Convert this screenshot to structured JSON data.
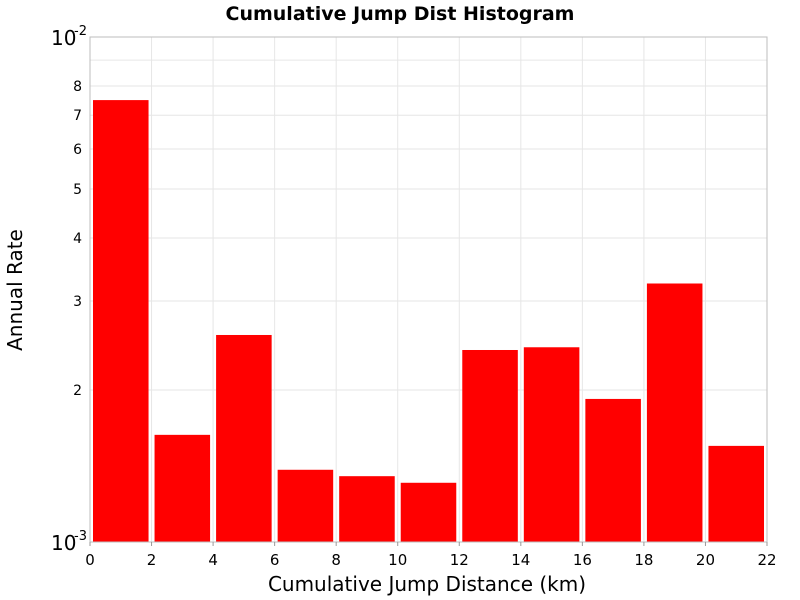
{
  "chart_data": {
    "type": "bar",
    "title": "Cumulative Jump Dist Histogram",
    "xlabel": "Cumulative Jump Distance (km)",
    "ylabel": "Annual Rate",
    "xlim": [
      0,
      22
    ],
    "ylim": [
      0.001,
      0.01
    ],
    "y_scale": "log",
    "grid": true,
    "bar_color": "#ff0000",
    "bin_width": 2,
    "x_ticks": [
      "0",
      "2",
      "4",
      "6",
      "8",
      "10",
      "12",
      "14",
      "16",
      "18",
      "20",
      "22"
    ],
    "y_decade_ticks": [
      {
        "value": 0.01,
        "base": "10",
        "exp": "-2"
      },
      {
        "value": 0.001,
        "base": "10",
        "exp": "-3"
      }
    ],
    "y_minor_ticks": [
      {
        "value": 0.008,
        "label": "8"
      },
      {
        "value": 0.007,
        "label": "7"
      },
      {
        "value": 0.006,
        "label": "6"
      },
      {
        "value": 0.005,
        "label": "5"
      },
      {
        "value": 0.004,
        "label": "4"
      },
      {
        "value": 0.003,
        "label": "3"
      },
      {
        "value": 0.002,
        "label": "2"
      },
      {
        "value": 0.009,
        "label": ""
      }
    ],
    "bins": [
      {
        "x_start": 0,
        "x_end": 2,
        "value": 0.0075
      },
      {
        "x_start": 2,
        "x_end": 4,
        "value": 0.00163
      },
      {
        "x_start": 4,
        "x_end": 6,
        "value": 0.00257
      },
      {
        "x_start": 6,
        "x_end": 8,
        "value": 0.00139
      },
      {
        "x_start": 8,
        "x_end": 10,
        "value": 0.00135
      },
      {
        "x_start": 10,
        "x_end": 12,
        "value": 0.00131
      },
      {
        "x_start": 12,
        "x_end": 14,
        "value": 0.0024
      },
      {
        "x_start": 14,
        "x_end": 16,
        "value": 0.00243
      },
      {
        "x_start": 16,
        "x_end": 18,
        "value": 0.00192
      },
      {
        "x_start": 18,
        "x_end": 20,
        "value": 0.00325
      },
      {
        "x_start": 20,
        "x_end": 22,
        "value": 0.00155
      }
    ]
  }
}
